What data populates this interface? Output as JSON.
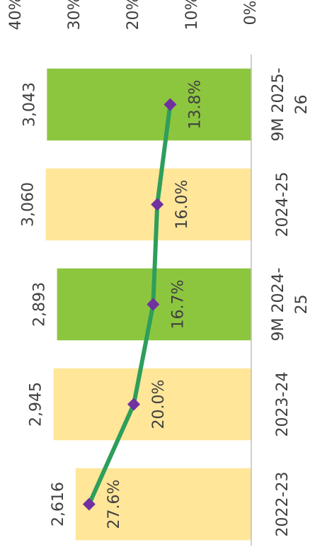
{
  "chart_data": {
    "type": "bar_line",
    "categories": [
      "2022-23",
      "2023-24",
      "9M 2024-25",
      "2024-25",
      "9M 2025-26"
    ],
    "series": [
      {
        "type": "bar",
        "values": [
          2616,
          2945,
          2893,
          3060,
          3043
        ],
        "value_labels": [
          "2,616",
          "2,945",
          "2,893",
          "3,060",
          "3,043"
        ],
        "colors": [
          "#ffe699",
          "#ffe699",
          "#8cc63f",
          "#ffe699",
          "#8cc63f"
        ]
      },
      {
        "type": "line",
        "axis": "y2",
        "values": [
          27.6,
          20.0,
          16.7,
          16.0,
          13.8
        ],
        "value_labels": [
          "27.6%",
          "20.0%",
          "16.7%",
          "16.0%",
          "13.8%"
        ],
        "color": "#2e9e5b",
        "marker_color": "#7030a0"
      }
    ],
    "ylim": [
      0,
      3500
    ],
    "y2lim": [
      0,
      40
    ],
    "y2ticks": [
      {
        "value": 0,
        "label": "0%"
      },
      {
        "value": 10,
        "label": "10%"
      },
      {
        "value": 20,
        "label": "20%"
      },
      {
        "value": 30,
        "label": "30%"
      },
      {
        "value": 40,
        "label": "40%"
      }
    ]
  }
}
